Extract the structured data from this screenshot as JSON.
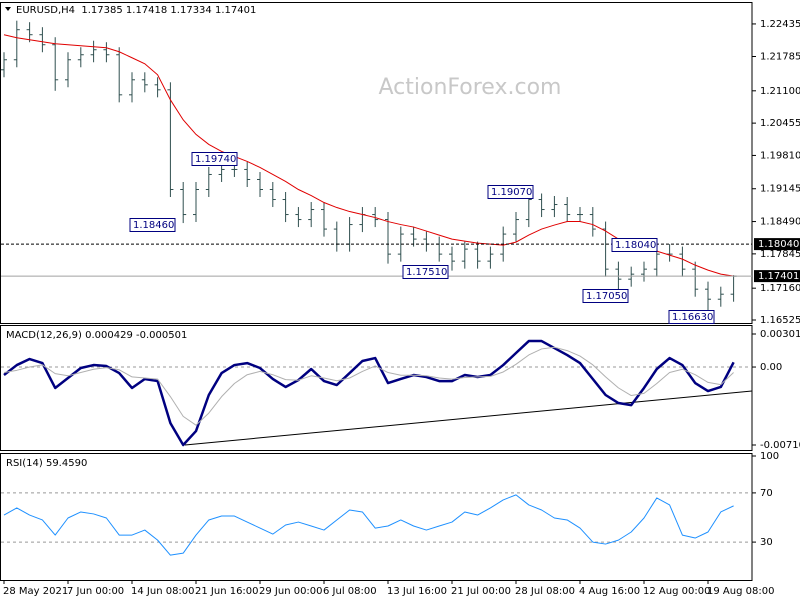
{
  "chart_data": [
    {
      "type": "ohlc",
      "title": "EURUSD,H4  1.17385 1.17418 1.17334 1.17401",
      "watermark": "ActionForex.com",
      "color": "#2f4f4f",
      "categories": [
        "28 May 2021",
        null,
        null,
        null,
        null,
        "7 Jun 00:00",
        null,
        null,
        null,
        null,
        "14 Jun 08:00",
        null,
        null,
        null,
        null,
        "21 Jun 16:00",
        null,
        null,
        null,
        null,
        "29 Jun 00:00",
        null,
        null,
        null,
        null,
        "6 Jul 08:00",
        null,
        null,
        null,
        null,
        "13 Jul 16:00",
        null,
        null,
        null,
        null,
        "21 Jul 00:00",
        null,
        null,
        null,
        null,
        "28 Jul 08:00",
        null,
        null,
        null,
        null,
        "4 Aug 16:00",
        null,
        null,
        null,
        null,
        "12 Aug 00:00",
        null,
        null,
        null,
        null,
        "19 Aug 08:00",
        null,
        null
      ],
      "open": [
        1.2152,
        1.2172,
        1.2232,
        1.2222,
        1.2202,
        1.2132,
        1.2172,
        1.2182,
        1.2192,
        1.2182,
        1.2102,
        1.2132,
        1.2122,
        1.2112,
        1.1913,
        1.1863,
        1.1913,
        1.1943,
        1.1953,
        1.1953,
        1.1933,
        1.1913,
        1.1893,
        1.1863,
        1.1853,
        1.1873,
        1.1834,
        1.1804,
        1.1843,
        1.1863,
        1.1853,
        1.1784,
        1.1824,
        1.1814,
        1.1804,
        1.1784,
        1.177,
        1.1794,
        1.177,
        1.1784,
        1.1824,
        1.1853,
        1.1893,
        1.1873,
        1.1883,
        1.1863,
        1.1863,
        1.1834,
        1.1754,
        1.1734,
        1.1744,
        1.1754,
        1.1784,
        1.1784,
        1.1754,
        1.1714,
        1.1694,
        1.1704
      ],
      "high": [
        1.2187,
        1.225,
        1.2247,
        1.2237,
        1.2217,
        1.2187,
        1.2197,
        1.221,
        1.2207,
        1.2197,
        1.2147,
        1.2147,
        1.2137,
        1.2127,
        1.1928,
        1.1928,
        1.1958,
        1.1974,
        1.1968,
        1.1968,
        1.1948,
        1.1928,
        1.1908,
        1.1878,
        1.1888,
        1.1888,
        1.1849,
        1.1858,
        1.1878,
        1.1878,
        1.1868,
        1.1839,
        1.1839,
        1.1829,
        1.1819,
        1.1799,
        1.1809,
        1.1809,
        1.1799,
        1.1839,
        1.1868,
        1.1907,
        1.1905,
        1.19,
        1.1898,
        1.1878,
        1.1878,
        1.1849,
        1.1769,
        1.1759,
        1.1769,
        1.1799,
        1.1804,
        1.1799,
        1.1769,
        1.1729,
        1.1719,
        1.1742
      ],
      "low": [
        1.2137,
        1.2157,
        1.2207,
        1.2187,
        1.211,
        1.2117,
        1.2157,
        1.2167,
        1.2167,
        1.2087,
        1.2087,
        1.2107,
        1.2097,
        1.1898,
        1.1846,
        1.1848,
        1.1898,
        1.1928,
        1.1938,
        1.1918,
        1.1898,
        1.1878,
        1.1848,
        1.1838,
        1.1838,
        1.1819,
        1.1789,
        1.1789,
        1.1828,
        1.1838,
        1.1765,
        1.1769,
        1.1799,
        1.1789,
        1.1769,
        1.1751,
        1.1755,
        1.1755,
        1.1755,
        1.1769,
        1.1809,
        1.1838,
        1.1858,
        1.1858,
        1.1848,
        1.1848,
        1.1819,
        1.1739,
        1.1705,
        1.1719,
        1.1729,
        1.1739,
        1.1769,
        1.1739,
        1.1699,
        1.1663,
        1.1679,
        1.1689
      ],
      "close": [
        1.2172,
        1.2232,
        1.2222,
        1.2202,
        1.2132,
        1.2172,
        1.2182,
        1.2192,
        1.2182,
        1.2102,
        1.2132,
        1.2122,
        1.2112,
        1.1913,
        1.1863,
        1.1913,
        1.1943,
        1.1953,
        1.1953,
        1.1933,
        1.1913,
        1.1893,
        1.1863,
        1.1853,
        1.1873,
        1.1834,
        1.1804,
        1.1843,
        1.1863,
        1.1853,
        1.1784,
        1.1824,
        1.1814,
        1.1804,
        1.1784,
        1.177,
        1.1794,
        1.177,
        1.1784,
        1.1824,
        1.1853,
        1.1893,
        1.1873,
        1.1883,
        1.1863,
        1.1863,
        1.1834,
        1.1754,
        1.1734,
        1.1744,
        1.1754,
        1.1784,
        1.1784,
        1.1754,
        1.1714,
        1.1694,
        1.1704,
        1.174
      ],
      "ma": {
        "color": "#e00000",
        "values": [
          1.2222,
          1.2216,
          1.2212,
          1.2208,
          1.2204,
          1.2202,
          1.22,
          1.2198,
          1.2196,
          1.2188,
          1.2176,
          1.2164,
          1.2142,
          1.2092,
          1.2052,
          1.2023,
          1.2003,
          1.1989,
          1.1979,
          1.1969,
          1.1957,
          1.1943,
          1.1929,
          1.1913,
          1.1901,
          1.1887,
          1.1877,
          1.1869,
          1.1863,
          1.1857,
          1.1849,
          1.1843,
          1.1838,
          1.183,
          1.1822,
          1.1814,
          1.181,
          1.1806,
          1.1804,
          1.1802,
          1.1808,
          1.1822,
          1.1834,
          1.1842,
          1.1849,
          1.1849,
          1.1843,
          1.183,
          1.1814,
          1.1804,
          1.1796,
          1.179,
          1.1782,
          1.1774,
          1.1762,
          1.1752,
          1.1744,
          1.174
        ]
      },
      "hlines": [
        {
          "value": 1.1804,
          "label": "1.18040"
        },
        1.17401
      ],
      "hline_styles": [
        "dashed",
        "solid"
      ],
      "annotations": [
        "1.19740",
        "1.18460",
        "1.19070",
        "1.17510",
        "1.18040",
        "1.17050",
        "1.16630"
      ],
      "ylim": [
        1.16485,
        1.22813
      ],
      "yticks": [
        1.22435,
        1.21785,
        {
          "value": 1.211,
          "label": "1.21100"
        },
        1.20455,
        {
          "value": 1.1981,
          "label": "1.19810"
        },
        1.19145,
        {
          "value": 1.1849,
          "label": "1.18490"
        },
        1.17845,
        {
          "value": 1.1716,
          "label": "1.17160"
        },
        1.16525
      ]
    },
    {
      "type": "line",
      "title": "MACD(12,26,9) 0.000429 -0.000501",
      "series": [
        {
          "color": "#000080",
          "width": 2.5,
          "values": [
            -0.00073,
            0.00018,
            0.00073,
            0.00036,
            -0.00191,
            -0.001,
            -9e-05,
            0.00018,
            9e-05,
            -0.00055,
            -0.00191,
            -0.00109,
            -0.00128,
            -0.00511,
            -0.00711,
            -0.00584,
            -0.00255,
            -0.00055,
            0.00018,
            0.00036,
            -9e-05,
            -0.00109,
            -0.00182,
            -0.00119,
            -0.00018,
            -0.00128,
            -0.00164,
            -0.00055,
            0.00055,
            0.00082,
            -0.00146,
            -0.00109,
            -0.00073,
            -0.00091,
            -0.00128,
            -0.00128,
            -0.00073,
            -0.00091,
            -0.00073,
            0.00018,
            0.00128,
            0.00237,
            0.00237,
            0.00173,
            0.00109,
            0.00036,
            -0.00109,
            -0.00255,
            -0.00328,
            -0.00347,
            -0.00191,
            -0.00018,
            0.00082,
            0.00018,
            -0.00146,
            -0.00219,
            -0.00182,
            0.00043
          ]
        },
        {
          "color": "#b0b0b0",
          "width": 1,
          "values": [
            -0.0005,
            -0.0003,
            0,
            0.0002,
            -0.0006,
            -0.0008,
            -0.0005,
            -0.0002,
            -5e-05,
            -0.00025,
            -0.0009,
            -0.001,
            -0.0011,
            -0.0027,
            -0.0045,
            -0.0053,
            -0.0042,
            -0.0027,
            -0.0015,
            -0.0007,
            -0.0004,
            -0.0007,
            -0.00115,
            -0.0012,
            -0.0008,
            -0.001,
            -0.00125,
            -0.001,
            -0.0004,
            0.0001,
            -0.0005,
            -0.00075,
            -0.00075,
            -0.0008,
            -0.001,
            -0.0011,
            -0.00095,
            -0.0009,
            -0.00085,
            -0.00045,
            0.00025,
            0.0011,
            0.00165,
            0.0018,
            0.0015,
            0.001,
            0.0002,
            -0.0009,
            -0.0019,
            -0.0026,
            -0.0024,
            -0.0015,
            -0.0005,
            -0.0002,
            -0.0007,
            -0.0014,
            -0.0016,
            -0.000501
          ]
        }
      ],
      "levels": [
        0
      ],
      "ylim": [
        -0.007565,
        0.00365
      ],
      "yticks": [
        0.003012,
        {
          "value": 0,
          "label": "0.00"
        },
        -0.007109
      ]
    },
    {
      "type": "line",
      "title": "RSI(14) 59.4590",
      "series": [
        {
          "color": "#1e90ff",
          "width": 1,
          "values": [
            52,
            57.8,
            52,
            48,
            35.7,
            49.6,
            54.5,
            52.9,
            49.6,
            35.7,
            35.7,
            39.8,
            31.6,
            19.4,
            21,
            35.7,
            48,
            51.2,
            51.2,
            46.3,
            41.4,
            36.5,
            43.9,
            46.3,
            43.1,
            39.8,
            48,
            56.1,
            54.5,
            41.4,
            43.1,
            48,
            43.1,
            39.8,
            43.1,
            46.3,
            54.5,
            52,
            57.8,
            64.3,
            68.4,
            60.2,
            56.1,
            49.6,
            48,
            41.4,
            30,
            28.4,
            31.6,
            38.2,
            49.6,
            65.9,
            60.2,
            35.7,
            33.3,
            38.2,
            54.5,
            59.459
          ]
        }
      ],
      "levels": [
        70,
        30
      ],
      "ylim": [
        0,
        100
      ],
      "yticks": [
        100,
        70,
        30
      ]
    }
  ]
}
